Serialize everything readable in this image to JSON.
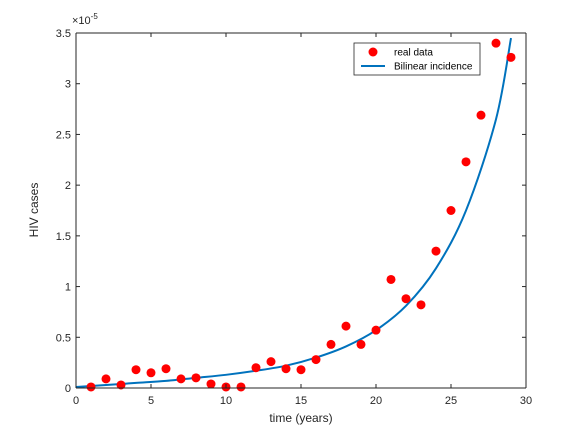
{
  "chart_data": {
    "type": "scatter",
    "xlabel": "time (years)",
    "ylabel": "HIV cases",
    "xlim": [
      0,
      30
    ],
    "ylim": [
      0,
      3.5
    ],
    "y_multiplier_label": {
      "base": "×10",
      "exponent": "-5"
    },
    "x_ticks": [
      "0",
      "5",
      "10",
      "15",
      "20",
      "25",
      "30"
    ],
    "y_ticks": [
      "0",
      "0.5",
      "1",
      "1.5",
      "2",
      "2.5",
      "3",
      "3.5"
    ],
    "grid": false,
    "legend_position": "top-right",
    "series": [
      {
        "name": "real data",
        "type": "scatter",
        "color": "#ff0000",
        "x": [
          1,
          2,
          3,
          4,
          5,
          6,
          7,
          8,
          9,
          10,
          11,
          12,
          13,
          14,
          15,
          16,
          17,
          18,
          19,
          20,
          21,
          22,
          23,
          24,
          25,
          26,
          27,
          28,
          29
        ],
        "y": [
          0.01,
          0.09,
          0.03,
          0.18,
          0.15,
          0.19,
          0.09,
          0.1,
          0.04,
          0.01,
          0.01,
          0.2,
          0.26,
          0.19,
          0.18,
          0.28,
          0.43,
          0.61,
          0.43,
          0.57,
          1.07,
          0.88,
          0.82,
          1.35,
          1.75,
          2.23,
          2.69,
          3.4,
          3.26
        ]
      },
      {
        "name": "Bilinear incidence",
        "type": "line",
        "color": "#0072bd",
        "x": [
          0,
          2,
          4,
          6,
          8,
          10,
          12,
          14,
          16,
          18,
          20,
          22,
          24,
          26,
          28,
          29
        ],
        "y": [
          0.01,
          0.03,
          0.05,
          0.07,
          0.1,
          0.13,
          0.17,
          0.22,
          0.3,
          0.41,
          0.57,
          0.81,
          1.18,
          1.75,
          2.65,
          3.45
        ]
      }
    ]
  }
}
